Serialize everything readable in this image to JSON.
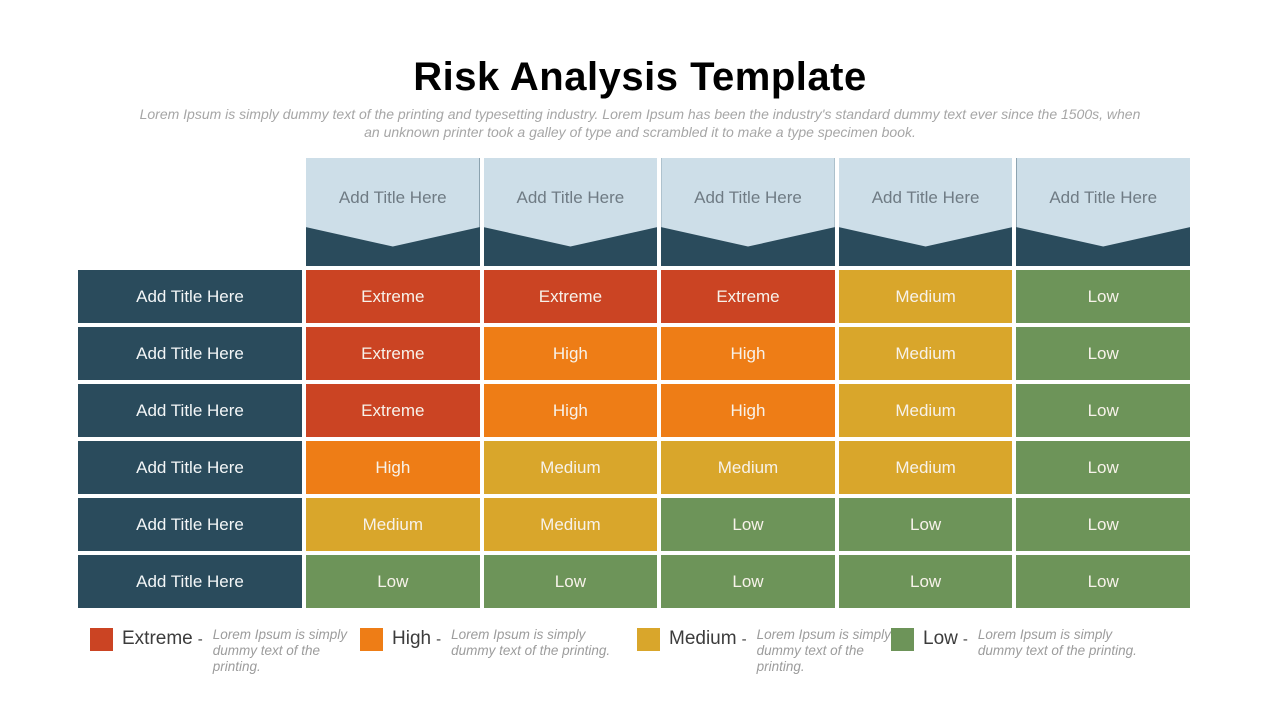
{
  "slide": {
    "title": "Risk Analysis Template",
    "subtitle_lines": [
      "Lorem Ipsum is simply dummy text of the printing and typesetting industry. Lorem Ipsum has been the industry's standard dummy text ever since the 1500s, when",
      "an unknown printer took a galley of type and scrambled it to make a type specimen book."
    ]
  },
  "colors": {
    "extreme": "#CB4423",
    "high": "#EE7D16",
    "medium": "#D9A62B",
    "low": "#6D9459",
    "header_dark_teal": "#2A4B5C",
    "header_light_blue": "#CDDEE8"
  },
  "chart_data": {
    "type": "heatmap",
    "title": "Risk Analysis Template",
    "column_headers": [
      "Add Title Here",
      "Add Title Here",
      "Add Title Here",
      "Add Title Here",
      "Add Title Here"
    ],
    "row_headers": [
      "Add Title Here",
      "Add Title Here",
      "Add Title Here",
      "Add Title Here",
      "Add Title Here",
      "Add Title Here"
    ],
    "values": [
      [
        "Extreme",
        "Extreme",
        "Extreme",
        "Medium",
        "Low"
      ],
      [
        "Extreme",
        "High",
        "High",
        "Medium",
        "Low"
      ],
      [
        "Extreme",
        "High",
        "High",
        "Medium",
        "Low"
      ],
      [
        "High",
        "Medium",
        "Medium",
        "Medium",
        "Low"
      ],
      [
        "Medium",
        "Medium",
        "Low",
        "Low",
        "Low"
      ],
      [
        "Low",
        "Low",
        "Low",
        "Low",
        "Low"
      ]
    ],
    "levels": [
      "Extreme",
      "High",
      "Medium",
      "Low"
    ],
    "legend_position": "bottom"
  },
  "legend": {
    "dash": "-",
    "items": [
      {
        "name": "Extreme",
        "level": "extreme",
        "description": "Lorem Ipsum is simply\ndummy text of the printing."
      },
      {
        "name": "High",
        "level": "high",
        "description": "Lorem Ipsum is simply\ndummy text of the printing."
      },
      {
        "name": "Medium",
        "level": "medium",
        "description": "Lorem Ipsum is simply\ndummy text of the printing."
      },
      {
        "name": "Low",
        "level": "low",
        "description": "Lorem Ipsum is simply\ndummy text of the printing."
      }
    ]
  }
}
